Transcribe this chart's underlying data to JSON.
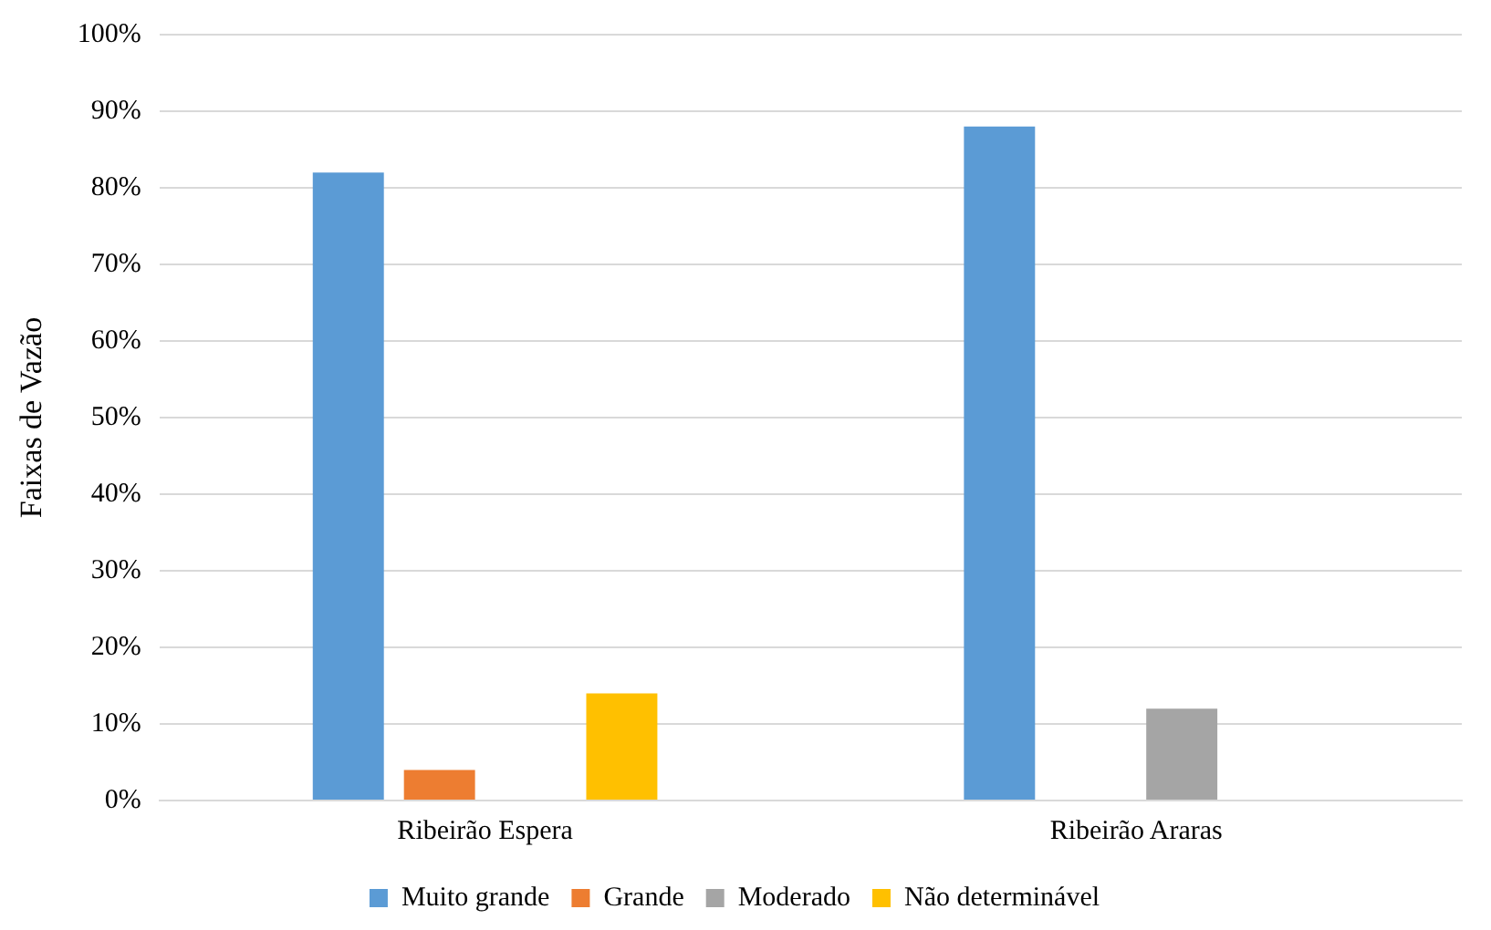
{
  "chart_data": {
    "type": "bar",
    "ylabel": "Faixas de Vazão",
    "categories": [
      "Ribeirão Espera",
      "Ribeirão Araras"
    ],
    "series": [
      {
        "name": "Muito grande",
        "color": "#5b9bd5",
        "values": [
          82,
          88
        ]
      },
      {
        "name": "Grande",
        "color": "#ed7d31",
        "values": [
          4,
          null
        ]
      },
      {
        "name": "Moderado",
        "color": "#a5a5a5",
        "values": [
          null,
          12
        ]
      },
      {
        "name": "Não determinável",
        "color": "#ffc000",
        "values": [
          14,
          null
        ]
      }
    ],
    "ylim": [
      0,
      100
    ],
    "yticks": [
      {
        "value": 0,
        "label": "0%"
      },
      {
        "value": 10,
        "label": "10%"
      },
      {
        "value": 20,
        "label": "20%"
      },
      {
        "value": 30,
        "label": "30%"
      },
      {
        "value": 40,
        "label": "40%"
      },
      {
        "value": 50,
        "label": "50%"
      },
      {
        "value": 60,
        "label": "60%"
      },
      {
        "value": 70,
        "label": "70%"
      },
      {
        "value": 80,
        "label": "80%"
      },
      {
        "value": 90,
        "label": "90%"
      },
      {
        "value": 100,
        "label": "100%"
      }
    ],
    "grid": "y",
    "legend": "bottom"
  }
}
